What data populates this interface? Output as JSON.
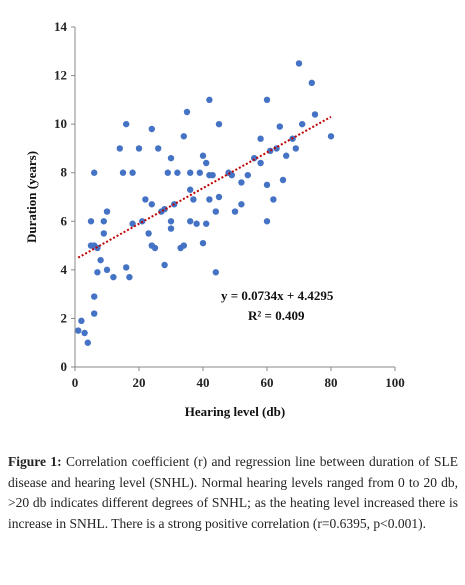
{
  "chart_data": {
    "type": "scatter",
    "xlabel": "Hearing level (db)",
    "ylabel": "Duration (years)",
    "xlim": [
      0,
      100
    ],
    "ylim": [
      0,
      14
    ],
    "x_ticks": [
      "0",
      "20",
      "40",
      "60",
      "80",
      "100"
    ],
    "y_ticks": [
      "0",
      "2",
      "4",
      "6",
      "8",
      "10",
      "12",
      "14"
    ],
    "grid": false,
    "point_color": "#4472C4",
    "trendline": {
      "slope": 0.0734,
      "intercept": 4.4295,
      "x_range": [
        1,
        80
      ],
      "color": "#C00000",
      "equation": "y = 0.0734x + 4.4295",
      "r_squared": "R² = 0.409"
    },
    "points": [
      [
        1,
        1.5
      ],
      [
        2,
        1.9
      ],
      [
        3,
        1.4
      ],
      [
        4,
        1.0
      ],
      [
        5,
        6.0
      ],
      [
        5,
        5.0
      ],
      [
        6,
        5.0
      ],
      [
        6,
        2.9
      ],
      [
        6,
        2.2
      ],
      [
        6,
        8.0
      ],
      [
        7,
        4.9
      ],
      [
        7,
        3.9
      ],
      [
        8,
        4.4
      ],
      [
        9,
        6.0
      ],
      [
        9,
        5.5
      ],
      [
        10,
        6.4
      ],
      [
        10,
        4.0
      ],
      [
        12,
        3.7
      ],
      [
        14,
        9.0
      ],
      [
        15,
        8.0
      ],
      [
        16,
        10.0
      ],
      [
        16,
        4.1
      ],
      [
        17,
        3.7
      ],
      [
        18,
        8.0
      ],
      [
        18,
        5.9
      ],
      [
        20,
        9.0
      ],
      [
        21,
        6.0
      ],
      [
        22,
        6.9
      ],
      [
        23,
        5.5
      ],
      [
        24,
        9.8
      ],
      [
        24,
        6.7
      ],
      [
        24,
        5.0
      ],
      [
        25,
        4.9
      ],
      [
        26,
        9.0
      ],
      [
        27,
        6.4
      ],
      [
        28,
        6.5
      ],
      [
        28,
        4.2
      ],
      [
        29,
        8.0
      ],
      [
        30,
        8.6
      ],
      [
        30,
        6.0
      ],
      [
        30,
        5.7
      ],
      [
        31,
        6.7
      ],
      [
        32,
        8.0
      ],
      [
        33,
        4.9
      ],
      [
        34,
        5.0
      ],
      [
        34,
        9.5
      ],
      [
        35,
        10.5
      ],
      [
        36,
        8.0
      ],
      [
        36,
        7.3
      ],
      [
        36,
        6.0
      ],
      [
        37,
        6.9
      ],
      [
        38,
        5.9
      ],
      [
        39,
        8.0
      ],
      [
        40,
        8.7
      ],
      [
        40,
        5.1
      ],
      [
        41,
        8.4
      ],
      [
        41,
        5.9
      ],
      [
        42,
        11.0
      ],
      [
        42,
        7.9
      ],
      [
        42,
        6.9
      ],
      [
        43,
        7.9
      ],
      [
        44,
        6.4
      ],
      [
        44,
        3.9
      ],
      [
        45,
        10.0
      ],
      [
        45,
        7.0
      ],
      [
        48,
        8.0
      ],
      [
        49,
        7.9
      ],
      [
        50,
        6.4
      ],
      [
        52,
        7.6
      ],
      [
        52,
        6.7
      ],
      [
        54,
        7.9
      ],
      [
        56,
        8.6
      ],
      [
        58,
        9.4
      ],
      [
        58,
        8.4
      ],
      [
        60,
        11.0
      ],
      [
        60,
        7.5
      ],
      [
        60,
        6.0
      ],
      [
        61,
        8.9
      ],
      [
        62,
        6.9
      ],
      [
        63,
        9.0
      ],
      [
        64,
        9.9
      ],
      [
        65,
        7.7
      ],
      [
        66,
        8.7
      ],
      [
        68,
        9.4
      ],
      [
        69,
        9.0
      ],
      [
        70,
        12.5
      ],
      [
        71,
        10.0
      ],
      [
        74,
        11.7
      ],
      [
        75,
        10.4
      ],
      [
        80,
        9.5
      ]
    ]
  },
  "caption": {
    "label": "Figure 1:",
    "text": " Correlation coefficient (r) and regression line between duration of SLE disease and hearing level (SNHL). Normal hearing levels ranged from 0 to 20 db, >20 db indicates different degrees of SNHL; as the heating level increased there is increase in SNHL. There is a strong positive correlation (r=0.6395, p<0.001)."
  }
}
